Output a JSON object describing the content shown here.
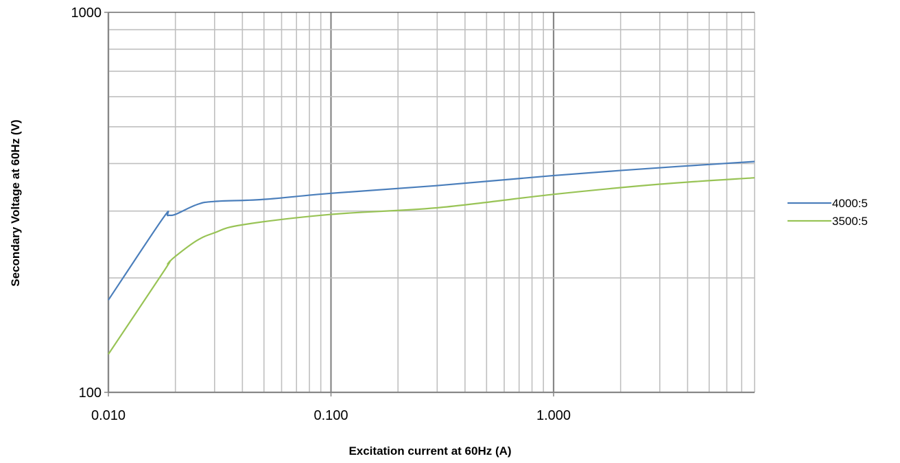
{
  "chart_data": {
    "type": "line",
    "title": "",
    "xlabel": "Excitation current at 60Hz (A)",
    "ylabel": "Secondary Voltage at 60Hz (V)",
    "x_scale": "log",
    "y_scale": "log",
    "xlim": [
      0.01,
      8
    ],
    "ylim": [
      100,
      1000
    ],
    "x_ticks": [
      {
        "value": 0.01,
        "label": "0.010"
      },
      {
        "value": 0.1,
        "label": "0.100"
      },
      {
        "value": 1,
        "label": "1.000"
      }
    ],
    "y_ticks": [
      {
        "value": 100,
        "label": "100"
      },
      {
        "value": 1000,
        "label": "1000"
      }
    ],
    "grid": "major and minor",
    "legend_position": "right",
    "series": [
      {
        "name": "4000:5",
        "color": "#4a7ebb",
        "points": [
          [
            0.01,
            175
          ],
          [
            0.0175,
            286
          ],
          [
            0.0185,
            292
          ],
          [
            0.02,
            294
          ],
          [
            0.025,
            312
          ],
          [
            0.03,
            318
          ],
          [
            0.05,
            322
          ],
          [
            0.1,
            334
          ],
          [
            0.3,
            350
          ],
          [
            1,
            372
          ],
          [
            3,
            390
          ],
          [
            8,
            405
          ]
        ]
      },
      {
        "name": "3500:5",
        "color": "#98c355",
        "points": [
          [
            0.01,
            126
          ],
          [
            0.018,
            211
          ],
          [
            0.0185,
            218
          ],
          [
            0.02,
            228
          ],
          [
            0.025,
            251
          ],
          [
            0.03,
            263
          ],
          [
            0.04,
            276
          ],
          [
            0.1,
            294
          ],
          [
            0.3,
            306
          ],
          [
            1,
            332
          ],
          [
            3,
            353
          ],
          [
            8,
            367
          ]
        ]
      }
    ]
  }
}
